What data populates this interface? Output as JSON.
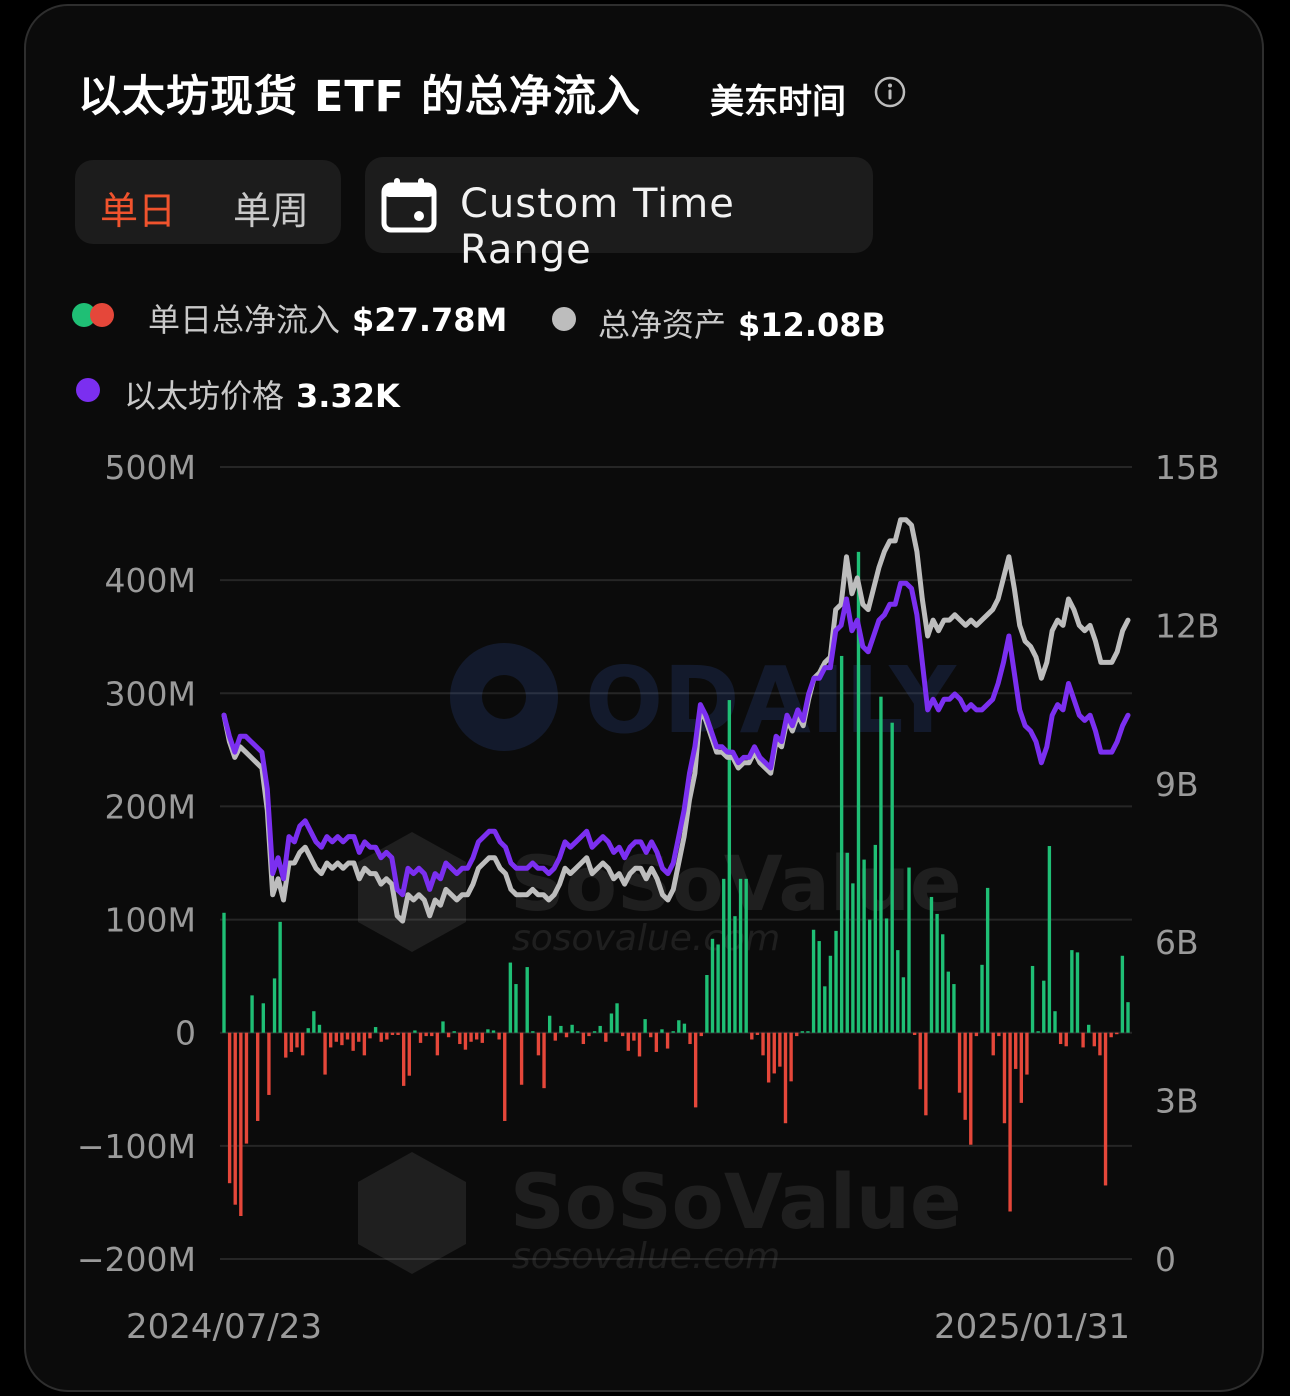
{
  "header": {
    "title": "以太坊现货 ETF 的总净流入",
    "timezone": "美东时间"
  },
  "period_tabs": [
    {
      "label": "单日",
      "active": true
    },
    {
      "label": "单周",
      "active": false
    }
  ],
  "custom_range": {
    "label": "Custom Time Range",
    "icon": "calendar-icon"
  },
  "legend": {
    "inflow": {
      "label": "单日总净流入",
      "value": "$27.78M"
    },
    "assets": {
      "label": "总净资产",
      "value": "$12.08B"
    },
    "price": {
      "label": "以太坊价格",
      "value": "3.32K"
    }
  },
  "colors": {
    "positive": "#1fbf75",
    "negative": "#e5473a",
    "assets_line": "#bdbdbd",
    "price_line": "#7b2ff0",
    "accent": "#f0532d"
  },
  "watermarks": [
    "ODAILY",
    "SoSoValue",
    "sosovalue.com"
  ],
  "chart_data": {
    "type": "bar",
    "x_start": "2024/07/23",
    "x_end": "2025/01/31",
    "left_axis": {
      "ticks": [
        "500M",
        "400M",
        "300M",
        "200M",
        "100M",
        "0",
        "−100M",
        "−200M"
      ],
      "ylim": [
        -200,
        500
      ],
      "unit": "M"
    },
    "right_axis": {
      "ticks": [
        "15B",
        "12B",
        "9B",
        "6B",
        "3B",
        "0"
      ],
      "ylim": [
        0,
        15
      ],
      "unit": "B"
    },
    "grid": true,
    "series": [
      {
        "name": "单日总净流入",
        "axis": "left",
        "kind": "bar",
        "values": [
          106,
          -133,
          -152,
          -162,
          -98,
          33,
          -78,
          26,
          -55,
          48,
          98,
          -22,
          -17,
          -13,
          -20,
          4,
          19,
          7,
          -37,
          -13,
          -8,
          -11,
          -6,
          -16,
          -8,
          -20,
          -5,
          5,
          -8,
          -6,
          -2,
          -2,
          -47,
          -38,
          2,
          -9,
          -3,
          -3,
          -20,
          10,
          -4,
          0,
          -10,
          -15,
          -8,
          -6,
          -9,
          3,
          2,
          -6,
          -78,
          62,
          43,
          -46,
          58,
          0,
          -20,
          -49,
          15,
          -7,
          6,
          -4,
          7,
          1,
          -10,
          -3,
          0,
          6,
          -8,
          17,
          26,
          -3,
          -16,
          -7,
          -21,
          12,
          -4,
          -17,
          3,
          -14,
          1,
          11,
          8,
          -10,
          -66,
          -3,
          51,
          83,
          78,
          136,
          294,
          103,
          136,
          136,
          -6,
          -2,
          -20,
          -44,
          -36,
          -30,
          -80,
          -43,
          -3,
          1,
          1,
          91,
          81,
          41,
          68,
          90,
          333,
          159,
          132,
          425,
          153,
          100,
          166,
          297,
          101,
          274,
          73,
          49,
          146,
          -2,
          -50,
          -73,
          120,
          105,
          87,
          54,
          43,
          -53,
          -77,
          -99,
          -3,
          60,
          128,
          -20,
          -3,
          -80,
          -158,
          -32,
          -62,
          -37,
          59,
          1,
          46,
          165,
          19,
          -10,
          -12,
          73,
          71,
          -13,
          7,
          -12,
          -20,
          -135,
          -4,
          -1,
          68,
          27
        ]
      },
      {
        "name": "总净资产",
        "axis": "right",
        "kind": "line",
        "values": [
          10.3,
          9.8,
          9.5,
          9.7,
          9.6,
          9.5,
          9.4,
          9.3,
          8.5,
          6.9,
          7.2,
          6.8,
          7.5,
          7.5,
          7.7,
          7.8,
          7.6,
          7.4,
          7.3,
          7.5,
          7.4,
          7.5,
          7.4,
          7.5,
          7.5,
          7.2,
          7.4,
          7.3,
          7.3,
          7.1,
          7.2,
          7.1,
          6.5,
          6.4,
          6.9,
          6.8,
          6.9,
          6.8,
          6.5,
          6.8,
          6.7,
          7.0,
          6.9,
          6.8,
          6.9,
          6.9,
          7.1,
          7.4,
          7.5,
          7.6,
          7.6,
          7.4,
          7.3,
          7.0,
          6.9,
          6.9,
          6.9,
          7.0,
          6.9,
          6.9,
          6.8,
          6.9,
          7.1,
          7.4,
          7.3,
          7.4,
          7.5,
          7.6,
          7.3,
          7.4,
          7.5,
          7.4,
          7.2,
          7.3,
          7.1,
          7.3,
          7.4,
          7.4,
          7.2,
          7.4,
          7.2,
          6.9,
          6.8,
          7.0,
          7.5,
          8.0,
          8.7,
          9.2,
          10.4,
          10.2,
          9.9,
          9.6,
          9.6,
          9.5,
          9.5,
          9.3,
          9.4,
          9.4,
          9.6,
          9.4,
          9.3,
          9.2,
          9.8,
          9.7,
          10.2,
          10.0,
          10.3,
          10.1,
          10.6,
          11.0,
          11.1,
          11.3,
          11.4,
          12.3,
          12.4,
          13.3,
          12.6,
          12.9,
          12.4,
          12.3,
          12.7,
          13.1,
          13.4,
          13.6,
          13.6,
          14.0,
          14.0,
          13.9,
          13.4,
          12.5,
          11.8,
          12.1,
          11.9,
          12.1,
          12.1,
          12.2,
          12.1,
          12.0,
          12.1,
          12.0,
          12.1,
          12.2,
          12.3,
          12.5,
          12.9,
          13.3,
          12.7,
          12.0,
          11.7,
          11.6,
          11.4,
          11.0,
          11.3,
          11.9,
          12.1,
          12.0,
          12.5,
          12.3,
          12.0,
          11.9,
          12.0,
          11.7,
          11.3,
          11.3,
          11.3,
          11.5,
          11.9,
          12.1
        ]
      },
      {
        "name": "以太坊价格",
        "axis": "right",
        "kind": "line",
        "values": [
          10.3,
          9.9,
          9.6,
          9.9,
          9.9,
          9.8,
          9.7,
          9.6,
          8.9,
          7.3,
          7.6,
          7.2,
          8.0,
          7.9,
          8.2,
          8.3,
          8.1,
          7.9,
          7.8,
          8.0,
          7.9,
          8.0,
          7.9,
          8.0,
          8.0,
          7.7,
          7.9,
          7.8,
          7.8,
          7.6,
          7.7,
          7.6,
          7.0,
          6.9,
          7.4,
          7.3,
          7.4,
          7.3,
          7.0,
          7.3,
          7.2,
          7.5,
          7.4,
          7.3,
          7.4,
          7.4,
          7.6,
          7.9,
          8.0,
          8.1,
          8.1,
          7.9,
          7.8,
          7.5,
          7.4,
          7.4,
          7.4,
          7.5,
          7.4,
          7.4,
          7.3,
          7.4,
          7.6,
          7.9,
          7.8,
          7.9,
          8.0,
          8.1,
          7.8,
          7.9,
          8.0,
          7.9,
          7.7,
          7.8,
          7.6,
          7.8,
          7.9,
          7.9,
          7.7,
          7.9,
          7.7,
          7.4,
          7.3,
          7.5,
          8.0,
          8.5,
          9.2,
          9.7,
          10.5,
          10.3,
          10.0,
          9.7,
          9.7,
          9.6,
          9.6,
          9.4,
          9.5,
          9.5,
          9.7,
          9.5,
          9.4,
          9.3,
          9.9,
          9.8,
          10.3,
          10.1,
          10.4,
          10.2,
          10.7,
          11.0,
          11.0,
          11.2,
          11.2,
          11.9,
          12.0,
          12.5,
          11.9,
          12.1,
          11.6,
          11.5,
          11.8,
          12.1,
          12.2,
          12.4,
          12.4,
          12.8,
          12.8,
          12.7,
          12.2,
          11.3,
          10.4,
          10.6,
          10.4,
          10.6,
          10.6,
          10.7,
          10.6,
          10.4,
          10.5,
          10.4,
          10.4,
          10.5,
          10.6,
          10.9,
          11.3,
          11.8,
          11.1,
          10.4,
          10.1,
          10.0,
          9.8,
          9.4,
          9.7,
          10.3,
          10.5,
          10.4,
          10.9,
          10.6,
          10.3,
          10.2,
          10.3,
          10.0,
          9.6,
          9.6,
          9.6,
          9.8,
          10.1,
          10.3
        ]
      }
    ]
  }
}
